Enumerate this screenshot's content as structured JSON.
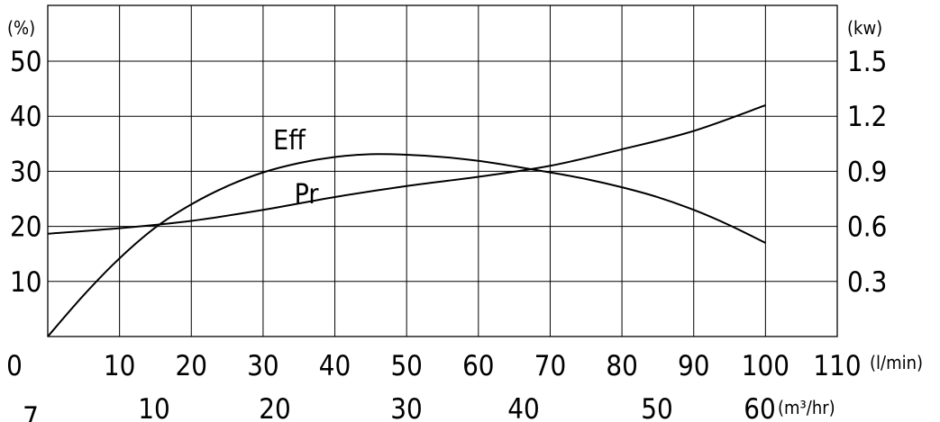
{
  "chart_data": {
    "type": "line",
    "grid": true,
    "x_primary": {
      "ticks": [
        "0",
        "10",
        "20",
        "30",
        "40",
        "50",
        "60",
        "70",
        "80",
        "90",
        "100",
        "110"
      ],
      "range": [
        0,
        110
      ],
      "unit": "(l/min)"
    },
    "x_secondary": {
      "ticks": [
        "10",
        "20",
        "30",
        "40",
        "50",
        "60"
      ],
      "unit": "(m³/hr)",
      "extra_label": "7"
    },
    "y_left": {
      "unit": "(%)",
      "ticks": [
        "10",
        "20",
        "30",
        "40",
        "50"
      ],
      "range": [
        0,
        50
      ]
    },
    "y_right": {
      "unit": "(kw)",
      "ticks": [
        "0.3",
        "0.6",
        "0.9",
        "1.2",
        "1.5"
      ],
      "range": [
        0,
        1.5
      ]
    },
    "series": [
      {
        "name": "Eff",
        "axis": "left",
        "x": [
          0,
          5,
          10,
          15,
          20,
          25,
          30,
          35,
          40,
          45,
          50,
          55,
          60,
          65,
          70,
          75,
          80,
          85,
          90,
          95,
          100
        ],
        "y": [
          0,
          7.5,
          14.2,
          19.8,
          24.0,
          27.3,
          29.8,
          31.5,
          32.6,
          33.1,
          33.0,
          32.6,
          31.9,
          30.9,
          29.8,
          28.6,
          27.1,
          25.3,
          23.0,
          20.2,
          17.0
        ]
      },
      {
        "name": "Pr",
        "axis": "right",
        "x": [
          0,
          10,
          20,
          30,
          40,
          50,
          60,
          70,
          80,
          90,
          100
        ],
        "y": [
          0.56,
          0.59,
          0.63,
          0.69,
          0.76,
          0.82,
          0.87,
          0.93,
          1.02,
          1.12,
          1.26
        ]
      }
    ]
  }
}
